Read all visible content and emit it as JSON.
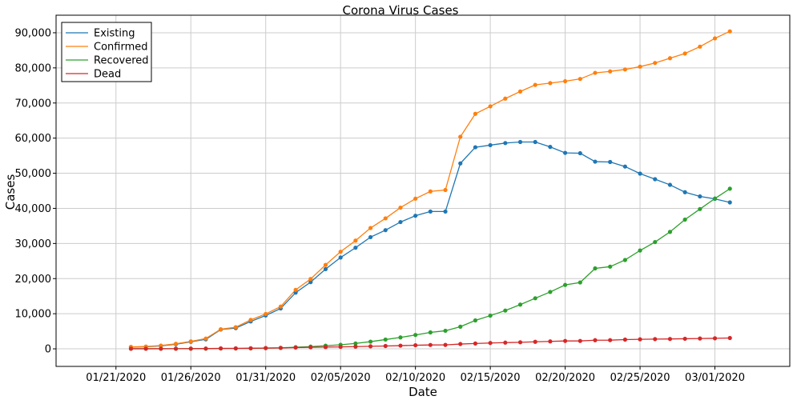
{
  "chart_data": {
    "type": "line",
    "title": "Corona Virus Cases",
    "xlabel": "Date",
    "ylabel": "Cases",
    "xlim": [
      "2020-01-17",
      "2020-03-06"
    ],
    "ylim": [
      -5000,
      95000
    ],
    "grid": true,
    "legend_position": "top-left",
    "x_ticks": [
      "01/21/2020",
      "01/26/2020",
      "01/31/2020",
      "02/05/2020",
      "02/10/2020",
      "02/15/2020",
      "02/20/2020",
      "02/25/2020",
      "03/01/2020"
    ],
    "x_tick_dates": [
      "2020-01-21",
      "2020-01-26",
      "2020-01-31",
      "2020-02-05",
      "2020-02-10",
      "2020-02-15",
      "2020-02-20",
      "2020-02-25",
      "2020-03-01"
    ],
    "y_ticks": [
      0,
      10000,
      20000,
      30000,
      40000,
      50000,
      60000,
      70000,
      80000,
      90000
    ],
    "y_tick_labels": [
      "0",
      "10,000",
      "20,000",
      "30,000",
      "40,000",
      "50,000",
      "60,000",
      "70,000",
      "80,000",
      "90,000"
    ],
    "x": [
      "2020-01-22",
      "2020-01-23",
      "2020-01-24",
      "2020-01-25",
      "2020-01-26",
      "2020-01-27",
      "2020-01-28",
      "2020-01-29",
      "2020-01-30",
      "2020-01-31",
      "2020-02-01",
      "2020-02-02",
      "2020-02-03",
      "2020-02-04",
      "2020-02-05",
      "2020-02-06",
      "2020-02-07",
      "2020-02-08",
      "2020-02-09",
      "2020-02-10",
      "2020-02-11",
      "2020-02-12",
      "2020-02-13",
      "2020-02-14",
      "2020-02-15",
      "2020-02-16",
      "2020-02-17",
      "2020-02-18",
      "2020-02-19",
      "2020-02-20",
      "2020-02-21",
      "2020-02-22",
      "2020-02-23",
      "2020-02-24",
      "2020-02-25",
      "2020-02-26",
      "2020-02-27",
      "2020-02-28",
      "2020-02-29",
      "2020-03-01",
      "2020-03-02"
    ],
    "series": [
      {
        "name": "Existing",
        "color": "#1f77b4",
        "values": [
          500,
          600,
          850,
          1300,
          2000,
          2700,
          5500,
          5900,
          7800,
          9500,
          11500,
          16000,
          19000,
          22700,
          26000,
          28800,
          31800,
          33800,
          36100,
          37900,
          39100,
          39100,
          52800,
          57400,
          58000,
          58600,
          58900,
          58900,
          57500,
          55800,
          55700,
          53300,
          53200,
          51900,
          49900,
          48300,
          46700,
          44600,
          43400,
          42700,
          41700
        ]
      },
      {
        "name": "Confirmed",
        "color": "#ff7f0e",
        "values": [
          560,
          650,
          940,
          1440,
          2120,
          2930,
          5580,
          6170,
          8240,
          9930,
          12040,
          16790,
          19890,
          23900,
          27650,
          30820,
          34400,
          37150,
          40200,
          42760,
          44830,
          45230,
          60380,
          66920,
          69050,
          71250,
          73280,
          75150,
          75660,
          76200,
          76850,
          78580,
          79000,
          79550,
          80350,
          81400,
          82750,
          84100,
          86050,
          88400,
          90400
        ]
      },
      {
        "name": "Recovered",
        "color": "#2ca02c",
        "values": [
          30,
          30,
          40,
          40,
          50,
          60,
          110,
          130,
          140,
          220,
          280,
          470,
          630,
          890,
          1150,
          1540,
          2050,
          2650,
          3250,
          3950,
          4680,
          5150,
          6300,
          8100,
          9450,
          10900,
          12600,
          14400,
          16200,
          18200,
          18900,
          22900,
          23400,
          25300,
          28000,
          30400,
          33300,
          36800,
          39800,
          42800,
          45600
        ]
      },
      {
        "name": "Dead",
        "color": "#d62728",
        "values": [
          20,
          20,
          30,
          40,
          60,
          80,
          130,
          130,
          170,
          210,
          260,
          360,
          430,
          490,
          560,
          640,
          720,
          810,
          910,
          1020,
          1110,
          1120,
          1370,
          1520,
          1670,
          1770,
          1870,
          2010,
          2120,
          2250,
          2250,
          2460,
          2470,
          2630,
          2710,
          2770,
          2810,
          2870,
          2940,
          3000,
          3090
        ]
      }
    ]
  }
}
